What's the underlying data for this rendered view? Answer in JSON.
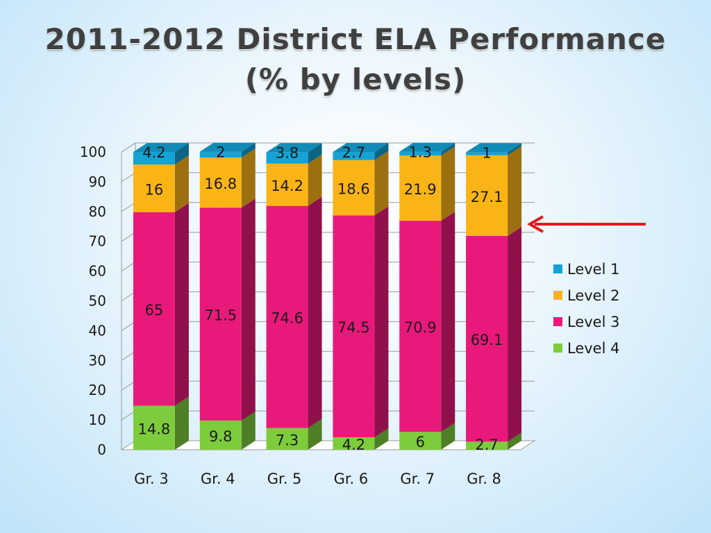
{
  "slide": {
    "title_line1": "2011-2012 District ELA Performance",
    "title_line2": "(% by levels)"
  },
  "chart_data": {
    "type": "bar",
    "stacked": true,
    "categories": [
      "Gr. 3",
      "Gr. 4",
      "Gr. 5",
      "Gr. 6",
      "Gr. 7",
      "Gr. 8"
    ],
    "series": [
      {
        "name": "Level 4",
        "color": "#7dcc3c",
        "values": [
          14.8,
          9.8,
          7.3,
          4.2,
          6,
          2.7
        ],
        "labels": [
          "14.8",
          "9.8",
          "7.3",
          "4.2",
          "6",
          "2.7"
        ]
      },
      {
        "name": "Level 3",
        "color": "#e8197a",
        "values": [
          65,
          71.5,
          74.6,
          74.5,
          70.9,
          69.1
        ],
        "labels": [
          "65",
          "71.5",
          "74.6",
          "74.5",
          "70.9",
          "69.1"
        ]
      },
      {
        "name": "Level 2",
        "color": "#fbb416",
        "values": [
          16,
          16.8,
          14.2,
          18.6,
          21.9,
          27.1
        ],
        "labels": [
          "16",
          "16.8",
          "14.2",
          "18.6",
          "21.9",
          "27.1"
        ]
      },
      {
        "name": "Level 1",
        "color": "#15a3d6",
        "values": [
          4.2,
          2,
          3.8,
          2.7,
          1.3,
          1
        ],
        "labels": [
          "4.2",
          "2",
          "3.8",
          "2.7",
          "1.3",
          "1"
        ]
      }
    ],
    "legend_order": [
      "Level 1",
      "Level 2",
      "Level 3",
      "Level 4"
    ],
    "y_ticks": [
      "0",
      "10",
      "20",
      "30",
      "40",
      "50",
      "60",
      "70",
      "80",
      "90",
      "100"
    ],
    "ylim": [
      0,
      100
    ],
    "grid": true,
    "legend_position": "right",
    "annotation": {
      "type": "arrow",
      "color": "#e4181c",
      "points_to": "Gr. 8"
    }
  }
}
